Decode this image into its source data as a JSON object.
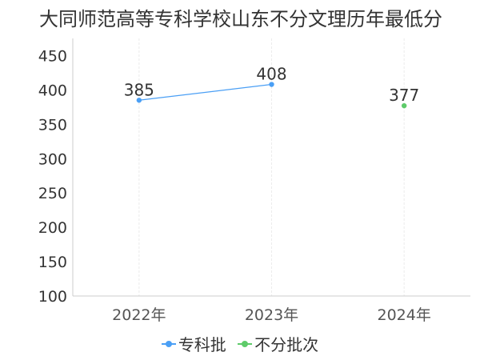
{
  "chart_data": {
    "type": "line",
    "title": "大同师范高等专科学校山东不分文理历年最低分",
    "categories": [
      "2022年",
      "2023年",
      "2024年"
    ],
    "ylim": [
      100,
      475
    ],
    "yticks": [
      100,
      150,
      200,
      250,
      300,
      350,
      400,
      450
    ],
    "grid": "vertical",
    "legend_position": "bottom",
    "series": [
      {
        "name": "专科批",
        "color": "#4a9ff5",
        "values": [
          385,
          408,
          null
        ],
        "labels": [
          "385",
          "408",
          ""
        ]
      },
      {
        "name": "不分批次",
        "color": "#5ecb6a",
        "values": [
          null,
          null,
          377
        ],
        "labels": [
          "",
          "",
          "377"
        ]
      }
    ]
  }
}
